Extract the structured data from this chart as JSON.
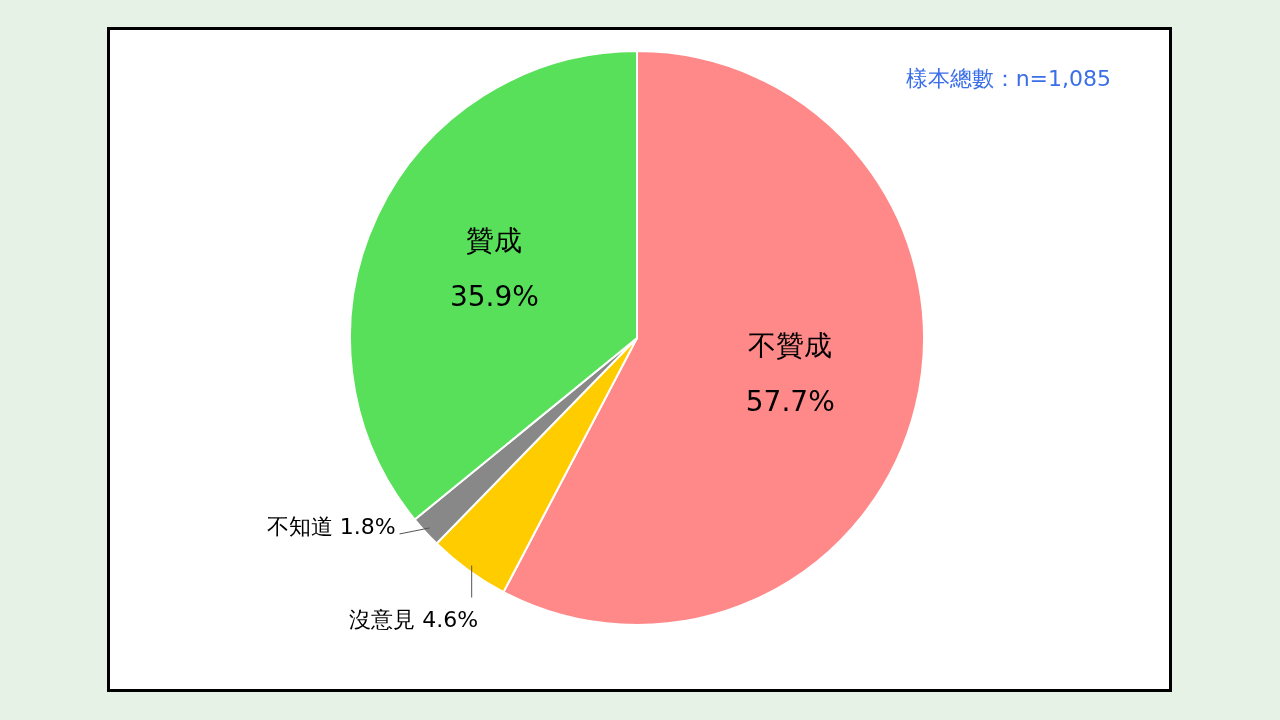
{
  "chart_data": {
    "type": "pie",
    "categories": [
      "不贊成",
      "沒意見",
      "不知道",
      "贊成"
    ],
    "values": [
      57.7,
      4.6,
      1.8,
      35.9
    ],
    "colors": [
      "#ff8888",
      "#ffcc00",
      "#888888",
      "#58e05a"
    ],
    "value_labels": [
      "57.7%",
      "4.6%",
      "1.8%",
      "35.9%"
    ],
    "legend": false,
    "annotations": [
      "樣本總數：n=1,085"
    ]
  }
}
